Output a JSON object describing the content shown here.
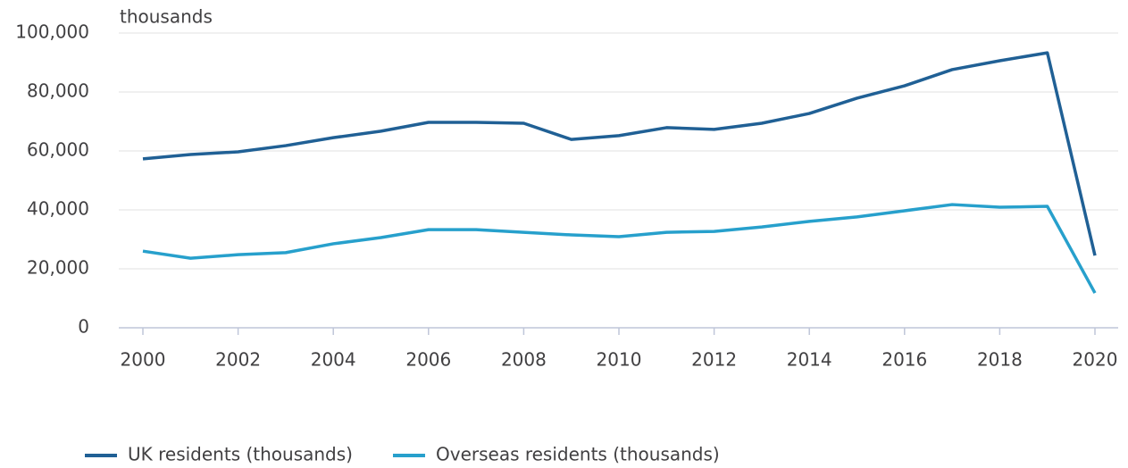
{
  "chart_data": {
    "type": "line",
    "y_label": "thousands",
    "x": [
      2000,
      2001,
      2002,
      2003,
      2004,
      2005,
      2006,
      2007,
      2008,
      2009,
      2010,
      2011,
      2012,
      2013,
      2014,
      2015,
      2016,
      2017,
      2018,
      2019,
      2020
    ],
    "series": [
      {
        "name": "UK residents (thousands)",
        "color": "#206095",
        "values": [
          57300,
          58800,
          59700,
          61800,
          64500,
          66700,
          69700,
          69700,
          69400,
          63900,
          65200,
          67900,
          67300,
          69400,
          72700,
          77900,
          82100,
          87600,
          90600,
          93300,
          24500
        ]
      },
      {
        "name": "Overseas residents (thousands)",
        "color": "#27a0cc",
        "values": [
          26000,
          23600,
          24800,
          25500,
          28500,
          30600,
          33300,
          33300,
          32400,
          31500,
          30900,
          32400,
          32700,
          34200,
          36100,
          37600,
          39700,
          41800,
          40900,
          41200,
          11800
        ]
      }
    ],
    "xlim": [
      2000,
      2020
    ],
    "xticks": [
      2000,
      2002,
      2004,
      2006,
      2008,
      2010,
      2012,
      2014,
      2016,
      2018,
      2020
    ],
    "ylim": [
      0,
      100000
    ],
    "yticks": [
      0,
      {
        "value": 20000,
        "label": "20,000"
      },
      {
        "value": 40000,
        "label": "40,000"
      },
      {
        "value": 60000,
        "label": "60,000"
      },
      {
        "value": 80000,
        "label": "80,000"
      },
      {
        "value": 100000,
        "label": "100,000"
      }
    ],
    "grid": true
  }
}
